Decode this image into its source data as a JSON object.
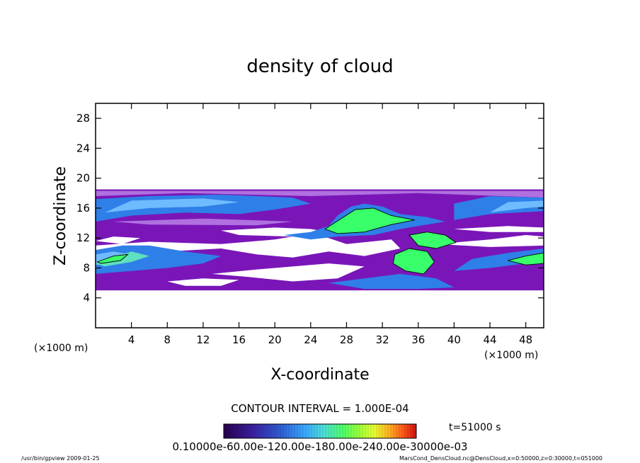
{
  "chart_data": {
    "type": "heatmap",
    "title": "density of cloud",
    "xlabel": "X-coordinate",
    "ylabel": "Z-coordinate",
    "x_unit_left": "(×1000 m)",
    "x_unit_right": "(×1000 m)",
    "xlim": [
      0,
      50
    ],
    "ylim": [
      0,
      30
    ],
    "xticks": [
      4,
      8,
      12,
      16,
      20,
      24,
      28,
      32,
      36,
      40,
      44,
      48
    ],
    "yticks": [
      4,
      8,
      12,
      16,
      20,
      24,
      28
    ],
    "contour_interval_text": "CONTOUR INTERVAL = 1.000E-04",
    "time_text": "t=51000 s",
    "colorbar_labels_text": "0.10000e-60.00e-120.00e-180.00e-240.00e-30000e-03",
    "colorbar_colors": [
      "#2a0050",
      "#3a1fa0",
      "#2f5fd6",
      "#39a6ff",
      "#4ce0d6",
      "#4dff6a",
      "#9aff3a",
      "#e8ff30",
      "#ffb020",
      "#ff5a1a",
      "#d01010"
    ],
    "cloud_layers": [
      {
        "name": "",
        "z_range": [
          5,
          18.5
        ],
        "level": "low"
      },
      {
        "name": "",
        "z_range": [
          13.5,
          18
        ],
        "level": "mid"
      },
      {
        "name": "",
        "z_range": [
          7,
          10.5
        ],
        "level": "mid"
      }
    ],
    "colors": {
      "low": "#7a16b8",
      "low_light": "#b070e0",
      "mid": "#2f7fe8",
      "mid_light": "#6fbbff",
      "high": "#38ff6a",
      "white": "#ffffff"
    }
  },
  "footer": {
    "left": "/usr/bin/gpview  2009-01-25",
    "right": "MarsCond_DensCloud.nc@DensCloud,x=0:50000,z=0:30000,t=051000"
  }
}
